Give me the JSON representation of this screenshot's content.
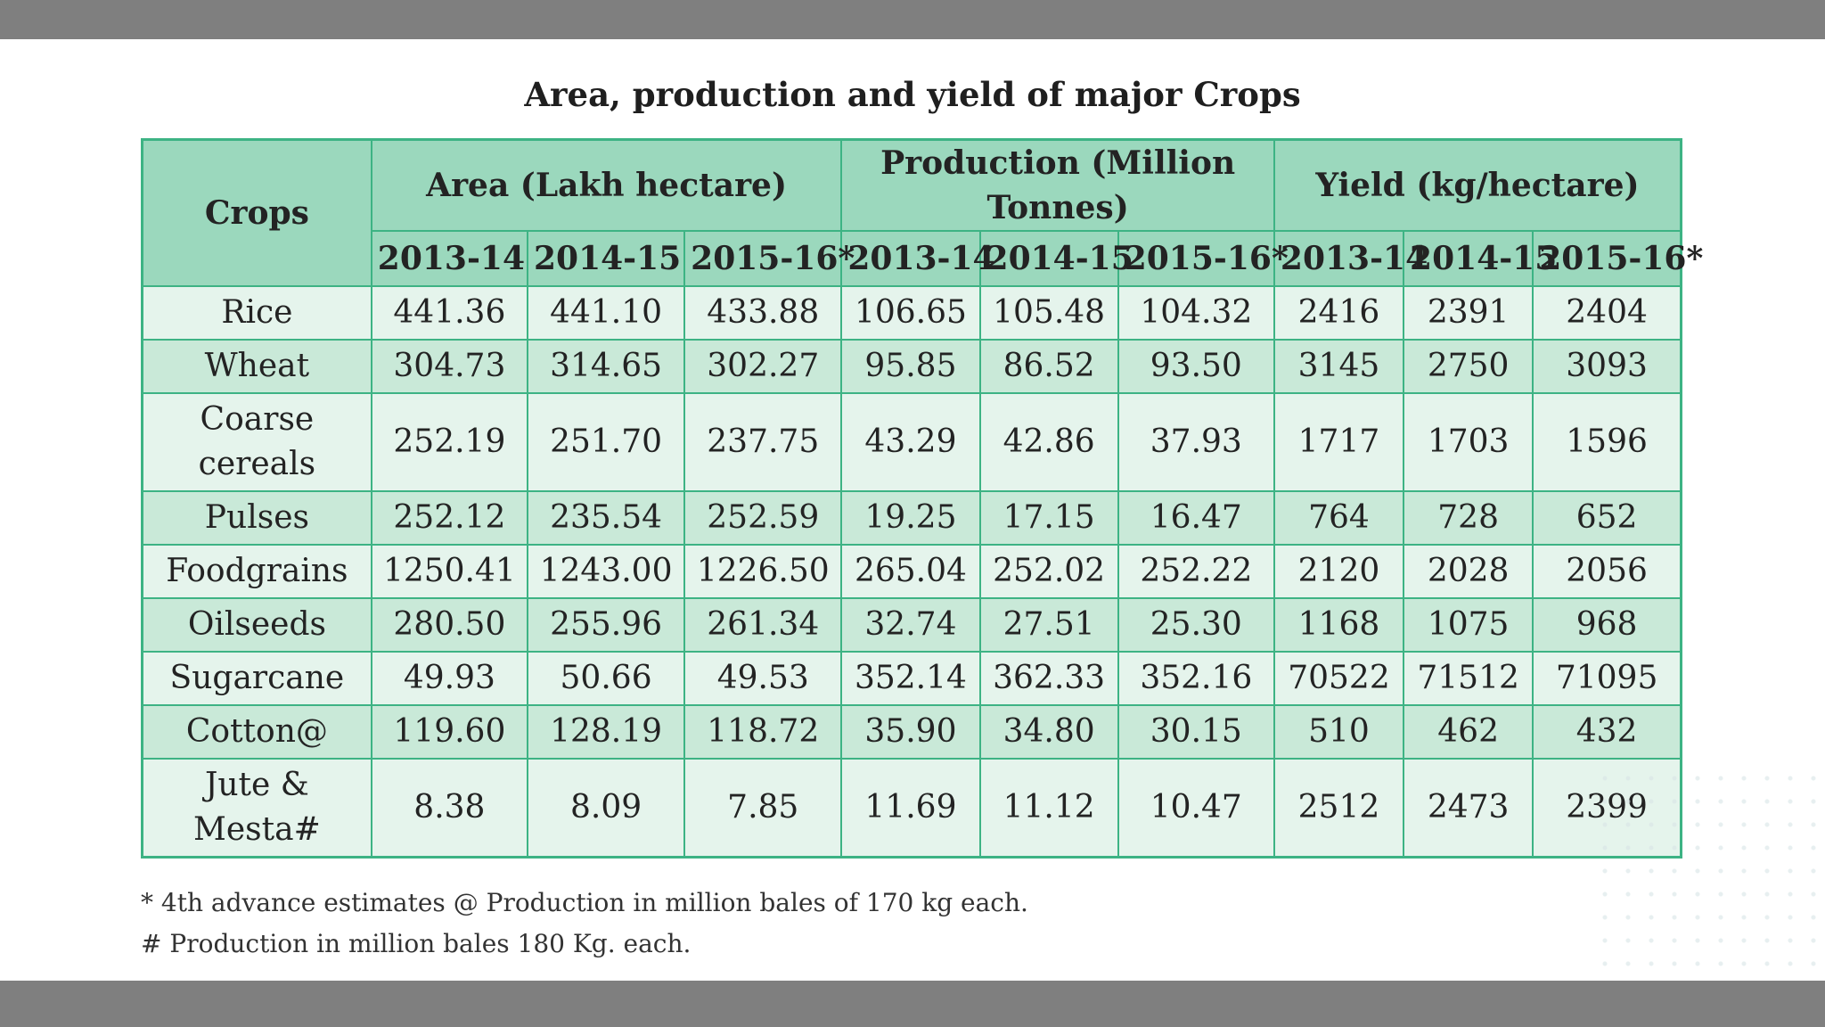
{
  "title": "Area, production and yield of major Crops",
  "header": {
    "crops": "Crops",
    "area": "Area (Lakh hectare)",
    "production": "Production (Million Tonnes)",
    "yield": "Yield (kg/hectare)",
    "years": [
      "2013-14",
      "2014-15",
      "2015-16*"
    ]
  },
  "rows": [
    {
      "crop": "Rice",
      "values": [
        "441.36",
        "441.10",
        "433.88",
        "106.65",
        "105.48",
        "104.32",
        "2416",
        "2391",
        "2404"
      ]
    },
    {
      "crop": "Wheat",
      "values": [
        "304.73",
        "314.65",
        "302.27",
        "95.85",
        "86.52",
        "93.50",
        "3145",
        "2750",
        "3093"
      ]
    },
    {
      "crop": "Coarse cereals",
      "values": [
        "252.19",
        "251.70",
        "237.75",
        "43.29",
        "42.86",
        "37.93",
        "1717",
        "1703",
        "1596"
      ]
    },
    {
      "crop": "Pulses",
      "values": [
        "252.12",
        "235.54",
        "252.59",
        "19.25",
        "17.15",
        "16.47",
        "764",
        "728",
        "652"
      ]
    },
    {
      "crop": "Foodgrains",
      "values": [
        "1250.41",
        "1243.00",
        "1226.50",
        "265.04",
        "252.02",
        "252.22",
        "2120",
        "2028",
        "2056"
      ]
    },
    {
      "crop": "Oilseeds",
      "values": [
        "280.50",
        "255.96",
        "261.34",
        "32.74",
        "27.51",
        "25.30",
        "1168",
        "1075",
        "968"
      ]
    },
    {
      "crop": "Sugarcane",
      "values": [
        "49.93",
        "50.66",
        "49.53",
        "352.14",
        "362.33",
        "352.16",
        "70522",
        "71512",
        "71095"
      ]
    },
    {
      "crop": "Cotton@",
      "values": [
        "119.60",
        "128.19",
        "118.72",
        "35.90",
        "34.80",
        "30.15",
        "510",
        "462",
        "432"
      ]
    },
    {
      "crop": "Jute & Mesta#",
      "values": [
        "8.38",
        "8.09",
        "7.85",
        "11.69",
        "11.12",
        "10.47",
        "2512",
        "2473",
        "2399"
      ]
    }
  ],
  "notes": [
    "* 4th advance estimates @ Production in million bales of 170 kg each.",
    "# Production in million bales 180 Kg. each."
  ],
  "colors": {
    "border": "#3db384",
    "header_bg": "#9bd8bd",
    "row_light": "#e5f4ec",
    "row_dark": "#c9e9d8",
    "frame_bar": "#7f7f7f"
  }
}
